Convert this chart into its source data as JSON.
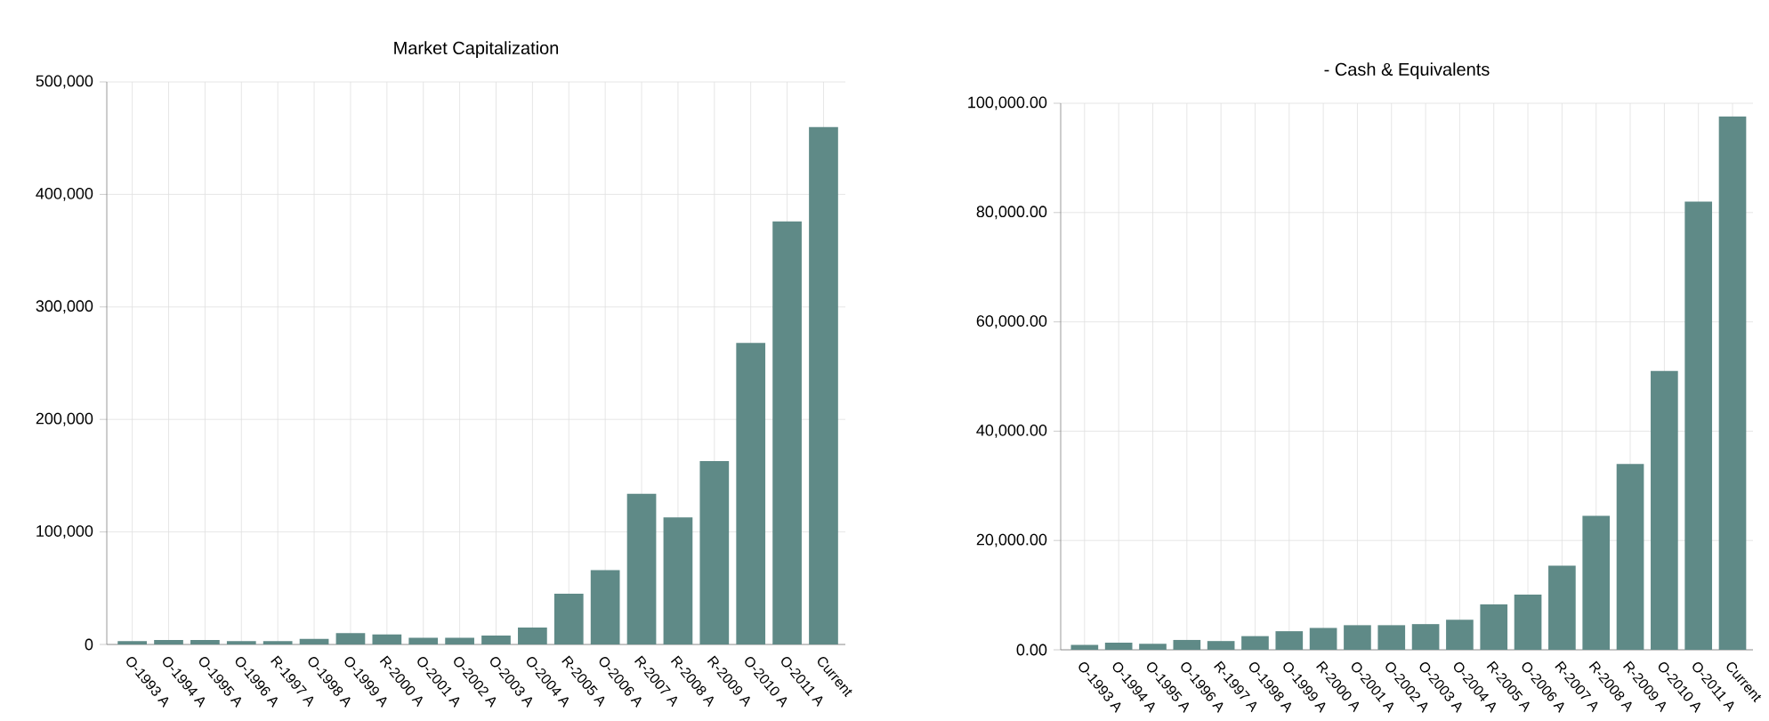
{
  "chart_data": [
    {
      "type": "bar",
      "title": "Market Capitalization",
      "categories": [
        "O-1993 A",
        "O-1994 A",
        "O-1995 A",
        "O-1996 A",
        "R-1997 A",
        "O-1998 A",
        "O-1999 A",
        "R-2000 A",
        "O-2001 A",
        "O-2002 A",
        "O-2003 A",
        "O-2004 A",
        "R-2005 A",
        "O-2006 A",
        "R-2007 A",
        "R-2008 A",
        "R-2009 A",
        "O-2010 A",
        "O-2011 A",
        "Current"
      ],
      "values": [
        3000,
        4000,
        4000,
        3000,
        3000,
        5000,
        10000,
        9000,
        6000,
        6000,
        8000,
        15000,
        45000,
        66000,
        134000,
        113000,
        163000,
        268000,
        376000,
        460000
      ],
      "color": "#5f8a87",
      "ylim": [
        0,
        500000
      ],
      "yticks": [
        {
          "value": 0,
          "label": "0"
        },
        {
          "value": 100000,
          "label": "100,000"
        },
        {
          "value": 200000,
          "label": "200,000"
        },
        {
          "value": 300000,
          "label": "300,000"
        },
        {
          "value": 400000,
          "label": "400,000"
        },
        {
          "value": 500000,
          "label": "500,000"
        }
      ],
      "grid": true
    },
    {
      "type": "bar",
      "title": "- Cash & Equivalents",
      "categories": [
        "O-1993 A",
        "O-1994 A",
        "O-1995 A",
        "O-1996 A",
        "R-1997 A",
        "O-1998 A",
        "O-1999 A",
        "R-2000 A",
        "O-2001 A",
        "O-2002 A",
        "O-2003 A",
        "O-2004 A",
        "R-2005 A",
        "O-2006 A",
        "R-2007 A",
        "R-2008 A",
        "R-2009 A",
        "O-2010 A",
        "O-2011 A",
        "Current"
      ],
      "values": [
        900,
        1300,
        1100,
        1800,
        1600,
        2500,
        3400,
        4000,
        4500,
        4500,
        4700,
        5500,
        8300,
        10100,
        15400,
        24500,
        34000,
        51000,
        82000,
        97600
      ],
      "color": "#5f8a87",
      "ylim": [
        0,
        100000
      ],
      "yticks": [
        {
          "value": 0,
          "label": "0.00"
        },
        {
          "value": 20000,
          "label": "20,000.00"
        },
        {
          "value": 40000,
          "label": "40,000.00"
        },
        {
          "value": 60000,
          "label": "60,000.00"
        },
        {
          "value": 80000,
          "label": "80,000.00"
        },
        {
          "value": 100000,
          "label": "100,000.00"
        }
      ],
      "grid": true
    }
  ]
}
